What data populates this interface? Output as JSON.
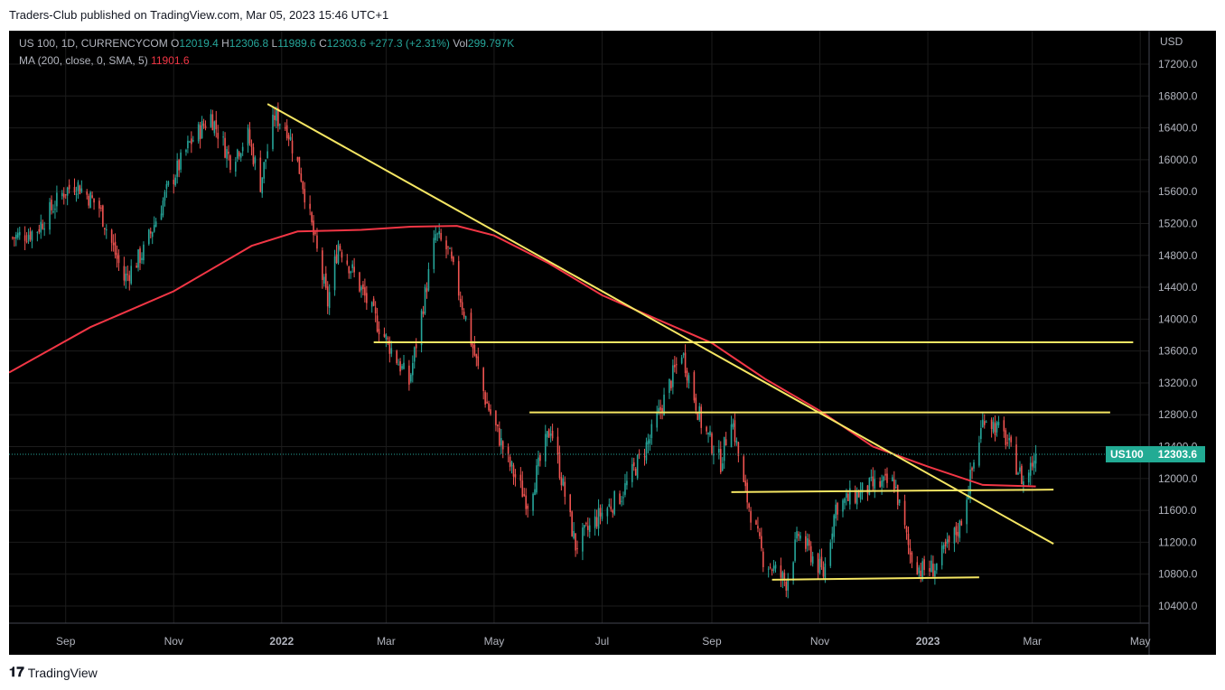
{
  "header": {
    "published": "Traders-Club published on TradingView.com, Mar 05, 2023 15:46 UTC+1"
  },
  "legend": {
    "symbol": "US 100, 1D, CURRENCYCOM",
    "o_label": "O",
    "o": "12019.4",
    "h_label": "H",
    "h": "12306.8",
    "l_label": "L",
    "l": "11989.6",
    "c_label": "C",
    "c": "12303.6",
    "change": "+277.3 (+2.31%)",
    "vol_label": "Vol",
    "vol": "299.797K",
    "ma_label": "MA (200, close, 0, SMA, 5)",
    "ma_value": "11901.6"
  },
  "price_label": {
    "symbol": "US100",
    "price": "12303.6"
  },
  "footer": {
    "brand": "TradingView",
    "logo": "𝟏𝟕"
  },
  "colors": {
    "background": "#000000",
    "up_candle": "#26a69a",
    "down_candle": "#ef5350",
    "ma_line": "#f23645",
    "trendlines": "#f5e663",
    "grid": "#1c1c1c",
    "axis_text": "#b2b5be",
    "price_label_bg": "#22ab94"
  },
  "chart_data": {
    "type": "candlestick",
    "title": "US 100, 1D, CURRENCYCOM",
    "ylabel": "USD",
    "ylim": [
      10200,
      17400
    ],
    "yticks": [
      "17200.0",
      "16800.0",
      "16400.0",
      "16000.0",
      "15600.0",
      "15200.0",
      "14800.0",
      "14400.0",
      "14000.0",
      "13600.0",
      "13200.0",
      "12800.0",
      "12400.0",
      "12000.0",
      "11600.0",
      "11200.0",
      "10800.0",
      "10400.0"
    ],
    "xticks": [
      "Sep",
      "Nov",
      "2022",
      "Mar",
      "May",
      "Jul",
      "Sep",
      "Nov",
      "2023",
      "Mar",
      "May"
    ],
    "xtick_dates": [
      "2021-09-01",
      "2021-11-01",
      "2022-01-01",
      "2022-03-01",
      "2022-05-01",
      "2022-07-01",
      "2022-09-01",
      "2022-11-01",
      "2023-01-01",
      "2023-03-01",
      "2023-05-01"
    ],
    "x_range": [
      "2021-07-31",
      "2023-05-06"
    ],
    "last_close": 12303.6,
    "closes": [
      [
        "2021-08-01",
        15020
      ],
      [
        "2021-08-15",
        15100
      ],
      [
        "2021-08-31",
        15600
      ],
      [
        "2021-09-07",
        15700
      ],
      [
        "2021-09-20",
        15400
      ],
      [
        "2021-10-04",
        14500
      ],
      [
        "2021-10-15",
        14850
      ],
      [
        "2021-10-29",
        15650
      ],
      [
        "2021-11-10",
        16200
      ],
      [
        "2021-11-22",
        16550
      ],
      [
        "2021-12-03",
        16000
      ],
      [
        "2021-12-13",
        16300
      ],
      [
        "2021-12-20",
        15700
      ],
      [
        "2021-12-28",
        16550
      ],
      [
        "2022-01-04",
        16400
      ],
      [
        "2022-01-12",
        15800
      ],
      [
        "2022-01-27",
        14200
      ],
      [
        "2022-02-02",
        14950
      ],
      [
        "2022-02-10",
        14600
      ],
      [
        "2022-02-24",
        13950
      ],
      [
        "2022-03-07",
        13500
      ],
      [
        "2022-03-14",
        13200
      ],
      [
        "2022-03-29",
        15050
      ],
      [
        "2022-04-05",
        14850
      ],
      [
        "2022-04-14",
        14100
      ],
      [
        "2022-04-26",
        13000
      ],
      [
        "2022-05-09",
        12200
      ],
      [
        "2022-05-20",
        11700
      ],
      [
        "2022-06-02",
        12650
      ],
      [
        "2022-06-16",
        11150
      ],
      [
        "2022-06-30",
        11550
      ],
      [
        "2022-07-12",
        11800
      ],
      [
        "2022-07-28",
        12500
      ],
      [
        "2022-08-15",
        13600
      ],
      [
        "2022-08-26",
        12700
      ],
      [
        "2022-09-06",
        12200
      ],
      [
        "2022-09-12",
        12800
      ],
      [
        "2022-09-19",
        11900
      ],
      [
        "2022-09-30",
        11000
      ],
      [
        "2022-10-13",
        10700
      ],
      [
        "2022-10-20",
        11300
      ],
      [
        "2022-11-03",
        10800
      ],
      [
        "2022-11-10",
        11650
      ],
      [
        "2022-11-30",
        11900
      ],
      [
        "2022-12-13",
        11950
      ],
      [
        "2022-12-22",
        11050
      ],
      [
        "2022-12-28",
        10850
      ],
      [
        "2023-01-05",
        10880
      ],
      [
        "2023-01-19",
        11400
      ],
      [
        "2023-02-02",
        12800
      ],
      [
        "2023-02-14",
        12500
      ],
      [
        "2023-02-24",
        11950
      ],
      [
        "2023-03-03",
        12303.6
      ]
    ],
    "moving_average": {
      "name": "MA (200, close, 0, SMA, 5)",
      "last": 11901.6,
      "points": [
        [
          "2021-07-31",
          13330
        ],
        [
          "2021-09-15",
          13900
        ],
        [
          "2021-11-01",
          14350
        ],
        [
          "2021-12-15",
          14920
        ],
        [
          "2022-01-10",
          15100
        ],
        [
          "2022-02-15",
          15120
        ],
        [
          "2022-03-15",
          15160
        ],
        [
          "2022-04-10",
          15170
        ],
        [
          "2022-05-01",
          15050
        ],
        [
          "2022-06-01",
          14700
        ],
        [
          "2022-07-01",
          14300
        ],
        [
          "2022-08-01",
          14000
        ],
        [
          "2022-09-01",
          13700
        ],
        [
          "2022-10-01",
          13250
        ],
        [
          "2022-11-01",
          12850
        ],
        [
          "2022-12-01",
          12400
        ],
        [
          "2023-01-01",
          12150
        ],
        [
          "2023-02-01",
          11920
        ],
        [
          "2023-03-03",
          11900
        ]
      ]
    },
    "trendlines": [
      {
        "from": [
          "2021-12-24",
          16700
        ],
        "to": [
          "2023-03-13",
          11180
        ]
      },
      {
        "from": [
          "2022-02-22",
          13710
        ],
        "to": [
          "2023-04-27",
          13710
        ]
      },
      {
        "from": [
          "2022-05-21",
          12830
        ],
        "to": [
          "2023-04-14",
          12830
        ]
      },
      {
        "from": [
          "2022-09-12",
          11830
        ],
        "to": [
          "2023-03-13",
          11860
        ]
      },
      {
        "from": [
          "2022-10-05",
          10730
        ],
        "to": [
          "2023-01-30",
          10760
        ]
      }
    ],
    "grid": true,
    "legend_position": "top-left"
  }
}
